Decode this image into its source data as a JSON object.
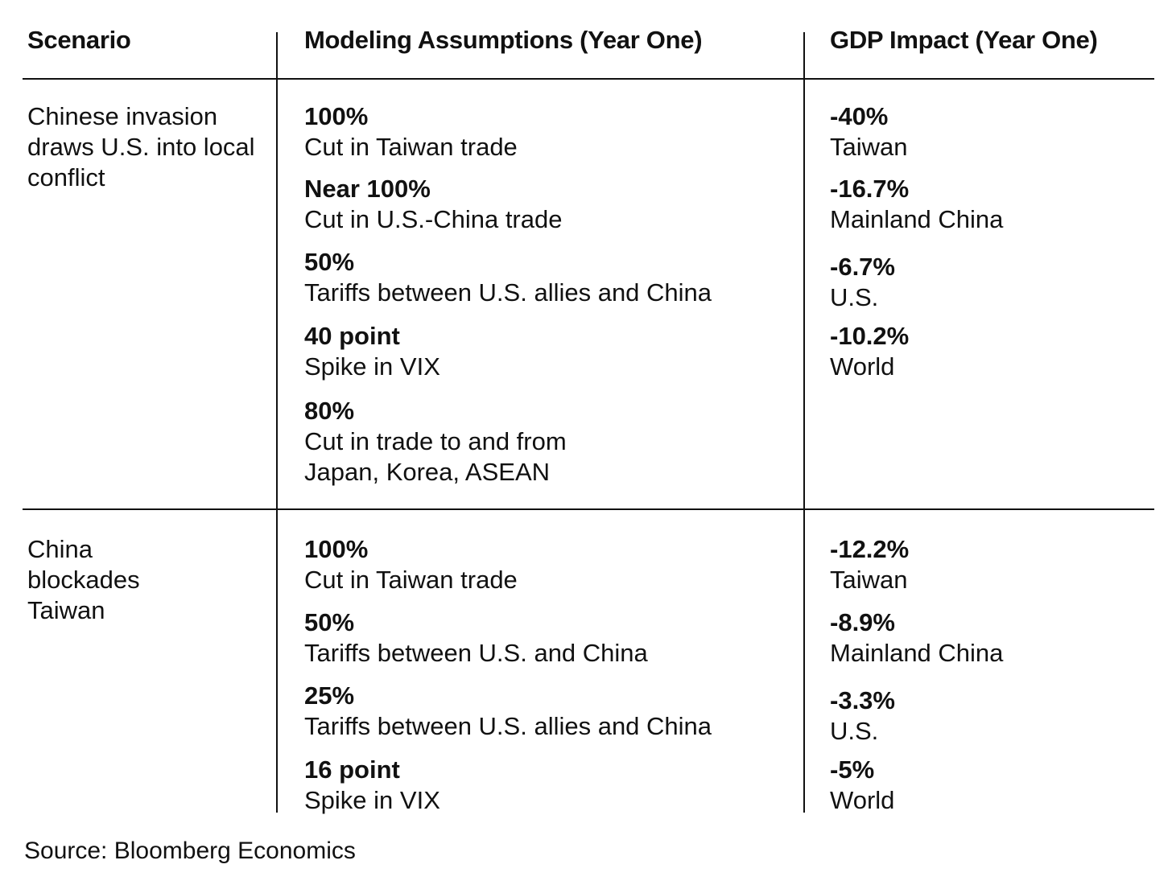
{
  "chart_data": {
    "type": "table",
    "columns": [
      "Scenario",
      "Modeling Assumptions (Year One)",
      "GDP Impact (Year One)"
    ],
    "rows": [
      {
        "scenario": "Chinese invasion draws U.S. into local conflict",
        "assumptions": [
          {
            "value": "100%",
            "label": "Cut in Taiwan trade"
          },
          {
            "value": "Near 100%",
            "label": "Cut in U.S.-China trade"
          },
          {
            "value": "50%",
            "label": "Tariffs between U.S. allies and China"
          },
          {
            "value": "40 point",
            "label": "Spike in VIX"
          },
          {
            "value": "80%",
            "label": "Cut in trade to and from\nJapan, Korea, ASEAN"
          }
        ],
        "impacts": [
          {
            "value": "-40%",
            "label": "Taiwan"
          },
          {
            "value": "-16.7%",
            "label": "Mainland China"
          },
          {
            "value": "-6.7%",
            "label": "U.S."
          },
          {
            "value": "-10.2%",
            "label": "World"
          }
        ]
      },
      {
        "scenario": "China blockades Taiwan",
        "assumptions": [
          {
            "value": "100%",
            "label": "Cut in Taiwan trade"
          },
          {
            "value": "50%",
            "label": "Tariffs between U.S. and China"
          },
          {
            "value": "25%",
            "label": "Tariffs between U.S. allies and China"
          },
          {
            "value": "16 point",
            "label": "Spike in VIX"
          }
        ],
        "impacts": [
          {
            "value": "-12.2%",
            "label": "Taiwan"
          },
          {
            "value": "-8.9%",
            "label": "Mainland China"
          },
          {
            "value": "-3.3%",
            "label": "U.S."
          },
          {
            "value": "-5%",
            "label": "World"
          }
        ]
      }
    ],
    "source": "Source: Bloomberg Economics"
  }
}
